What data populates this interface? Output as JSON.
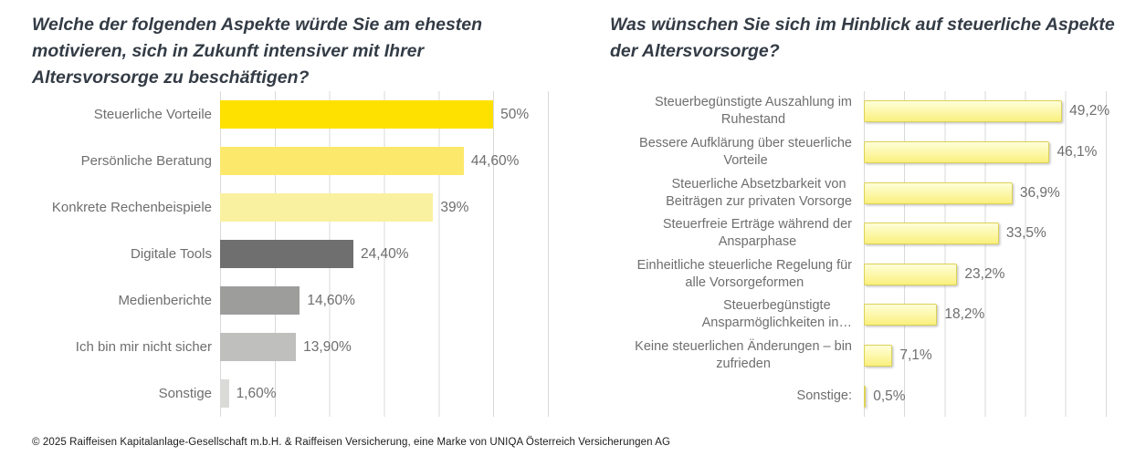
{
  "page": {
    "background_color": "#FFFFFF"
  },
  "footer": {
    "text": "© 2025 Raiffeisen Kapitalanlage-Gesellschaft m.b.H. & Raiffeisen Versicherung, eine Marke von UNIQA Österreich Versicherungen AG"
  },
  "chart_data": [
    {
      "type": "bar",
      "orientation": "horizontal",
      "title": "Welche der folgenden Aspekte würde Sie am ehesten\nmotivieren, sich in Zukunft intensiver mit Ihrer\nAltersvorsorge zu beschäftigen?",
      "categories": [
        "Steuerliche Vorteile",
        "Persönliche Beratung",
        "Konkrete Rechenbeispiele",
        "Digitale Tools",
        "Medienberichte",
        "Ich bin mir nicht sicher",
        "Sonstige"
      ],
      "values": [
        50,
        44.6,
        39,
        24.4,
        14.6,
        13.9,
        1.6
      ],
      "value_labels": [
        "50%",
        "44,60%",
        "39%",
        "24,40%",
        "14,60%",
        "13,90%",
        "1,60%"
      ],
      "bar_colors": [
        "#FFE100",
        "#FCE96C",
        "#FAF1A0",
        "#706F6F",
        "#9D9D9C",
        "#BFBFBE",
        "#DADAD9"
      ],
      "axis_min": 0,
      "axis_max": 60,
      "gridline_step": 10,
      "grid": "on",
      "gridline_color": "#D9D9D9",
      "label_color": "#6E6E6E",
      "title_color": "#333B45",
      "legend": "none",
      "xlabel": "",
      "ylabel": ""
    },
    {
      "type": "bar",
      "orientation": "horizontal",
      "title": "Was wünschen Sie sich im Hinblick auf steuerliche Aspekte\nder Altersvorsorge?",
      "categories": [
        "Steuerbegünstigte Auszahlung im\nRuhestand",
        "Bessere Aufklärung über steuerliche\nVorteile",
        "Steuerliche Absetzbarkeit von\nBeiträgen zur privaten Vorsorge",
        "Steuerfreie Erträge während der\nAnsparphase",
        "Einheitliche steuerliche Regelung für\nalle Vorsorgeformen",
        "Steuerbegünstigte\nAnsparmöglichkeiten in…",
        "Keine steuerlichen Änderungen – bin\nzufrieden",
        "Sonstige:"
      ],
      "values": [
        49.2,
        46.1,
        36.9,
        33.5,
        23.2,
        18.2,
        7.1,
        0.5
      ],
      "value_labels": [
        "49,2%",
        "46,1%",
        "36,9%",
        "33,5%",
        "23,2%",
        "18,2%",
        "7,1%",
        "0,5%"
      ],
      "bar_style": {
        "fill_top": "#FFFFD9",
        "fill_bottom": "#FAF07E",
        "border_color": "#DCD156"
      },
      "axis_min": 0,
      "axis_max": 70,
      "gridline_step": 10,
      "grid": "on",
      "gridline_color": "#D9D9D9",
      "label_color": "#6E6E6E",
      "title_color": "#333B45",
      "legend": "none",
      "xlabel": "",
      "ylabel": ""
    }
  ]
}
